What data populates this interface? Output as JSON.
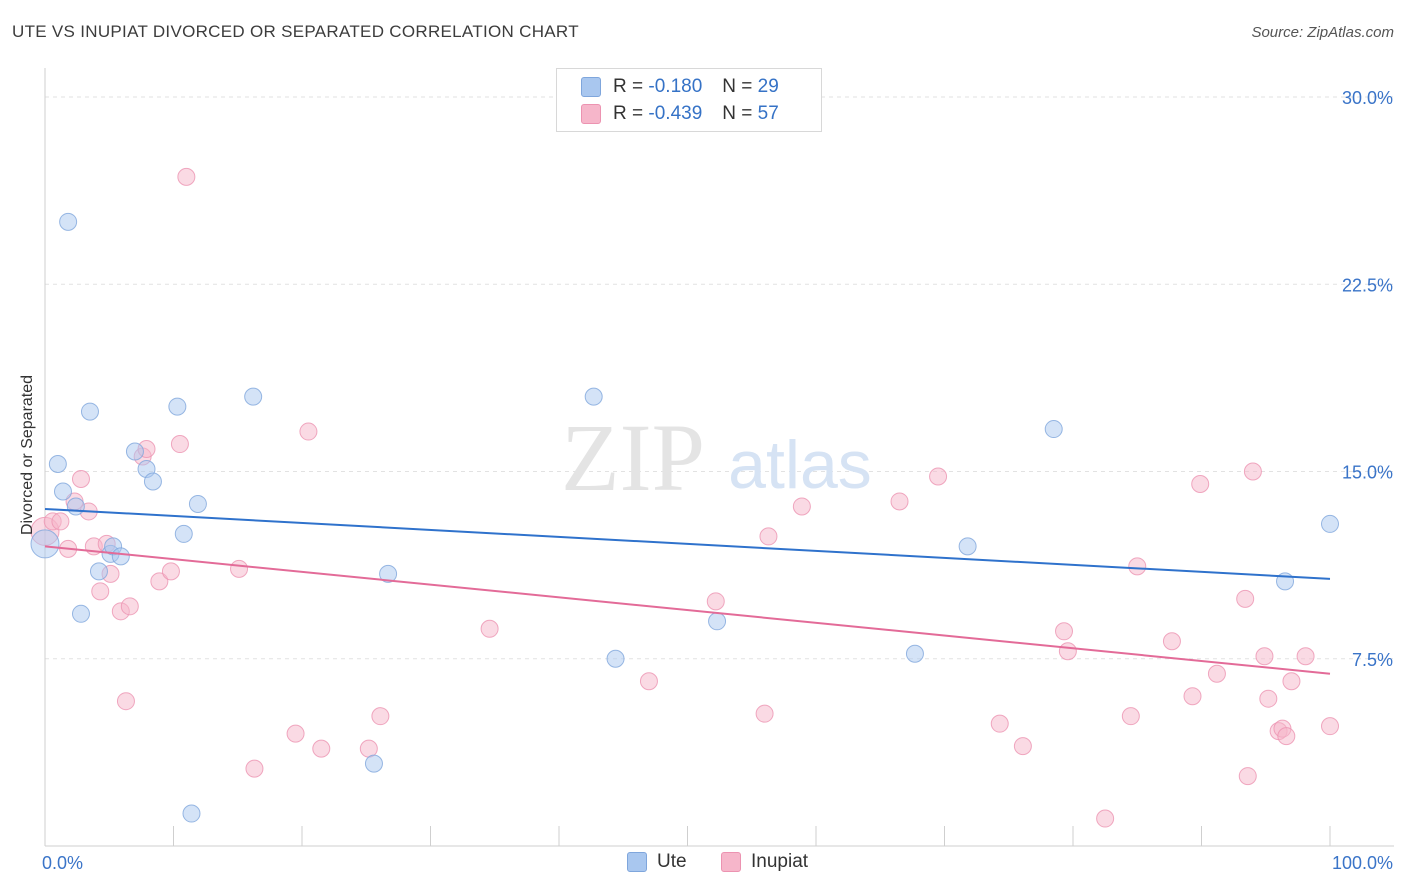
{
  "header": {
    "title": "UTE VS INUPIAT DIVORCED OR SEPARATED CORRELATION CHART",
    "source": "Source: ZipAtlas.com"
  },
  "watermark": {
    "zip": "ZIP",
    "atlas": "atlas"
  },
  "legend_top": {
    "rows": [
      {
        "r_label": "R =",
        "r_value": "-0.180",
        "n_label": "N =",
        "n_value": "29"
      },
      {
        "r_label": "R =",
        "r_value": "-0.439",
        "n_label": "N =",
        "n_value": "57"
      }
    ]
  },
  "legend_bottom": {
    "ute": "Ute",
    "inupiat": "Inupiat"
  },
  "colors": {
    "ute_fill": "#a9c7ef",
    "ute_stroke": "#7fa6dc",
    "ute_line": "#2f72cc",
    "inupiat_fill": "#f6b6ca",
    "inupiat_stroke": "#ec93b1",
    "inupiat_line": "#e36b98",
    "tick_text": "#3a74c8",
    "grid": "#e2e2e2"
  },
  "chart_data": {
    "type": "scatter",
    "title": "UTE VS INUPIAT DIVORCED OR SEPARATED CORRELATION CHART",
    "xlabel": "",
    "ylabel": "Divorced or Separated",
    "xlim": [
      0,
      100
    ],
    "ylim": [
      0,
      30
    ],
    "x_tick_labels": [
      "0.0%",
      "100.0%"
    ],
    "y_ticks": [
      7.5,
      15,
      22.5,
      30
    ],
    "y_tick_labels": [
      "7.5%",
      "15.0%",
      "22.5%",
      "30.0%"
    ],
    "grid": true,
    "series": [
      {
        "name": "Ute",
        "r": -0.18,
        "n": 29,
        "trend": {
          "x": [
            0,
            100
          ],
          "y": [
            13.5,
            10.7
          ]
        },
        "points": [
          [
            0,
            12.1
          ],
          [
            1.0,
            15.3
          ],
          [
            1.4,
            14.2
          ],
          [
            1.8,
            25.0
          ],
          [
            2.4,
            13.6
          ],
          [
            2.8,
            9.3
          ],
          [
            3.5,
            17.4
          ],
          [
            4.2,
            11.0
          ],
          [
            5.1,
            11.7
          ],
          [
            5.3,
            12.0
          ],
          [
            5.9,
            11.6
          ],
          [
            7.0,
            15.8
          ],
          [
            7.9,
            15.1
          ],
          [
            8.4,
            14.6
          ],
          [
            10.3,
            17.6
          ],
          [
            10.8,
            12.5
          ],
          [
            11.4,
            1.3
          ],
          [
            11.9,
            13.7
          ],
          [
            16.2,
            18.0
          ],
          [
            25.6,
            3.3
          ],
          [
            26.7,
            10.9
          ],
          [
            42.7,
            18.0
          ],
          [
            44.4,
            7.5
          ],
          [
            52.3,
            9.0
          ],
          [
            67.7,
            7.7
          ],
          [
            71.8,
            12.0
          ],
          [
            78.5,
            16.7
          ],
          [
            96.5,
            10.6
          ],
          [
            100,
            12.9
          ]
        ]
      },
      {
        "name": "Inupiat",
        "r": -0.439,
        "n": 57,
        "trend": {
          "x": [
            0,
            100
          ],
          "y": [
            12.0,
            6.9
          ]
        },
        "points": [
          [
            0,
            12.6
          ],
          [
            0.6,
            13.0
          ],
          [
            1.2,
            13.0
          ],
          [
            1.8,
            11.9
          ],
          [
            2.3,
            13.8
          ],
          [
            2.8,
            14.7
          ],
          [
            3.4,
            13.4
          ],
          [
            3.8,
            12.0
          ],
          [
            4.3,
            10.2
          ],
          [
            4.8,
            12.1
          ],
          [
            5.1,
            10.9
          ],
          [
            5.9,
            9.4
          ],
          [
            6.3,
            5.8
          ],
          [
            6.6,
            9.6
          ],
          [
            7.6,
            15.6
          ],
          [
            7.9,
            15.9
          ],
          [
            8.9,
            10.6
          ],
          [
            9.8,
            11.0
          ],
          [
            10.5,
            16.1
          ],
          [
            11.0,
            26.8
          ],
          [
            15.1,
            11.1
          ],
          [
            16.3,
            3.1
          ],
          [
            19.5,
            4.5
          ],
          [
            20.5,
            16.6
          ],
          [
            21.5,
            3.9
          ],
          [
            25.2,
            3.9
          ],
          [
            26.1,
            5.2
          ],
          [
            34.6,
            8.7
          ],
          [
            47.0,
            6.6
          ],
          [
            52.2,
            9.8
          ],
          [
            56.0,
            5.3
          ],
          [
            56.3,
            12.4
          ],
          [
            58.9,
            13.6
          ],
          [
            66.5,
            13.8
          ],
          [
            69.5,
            14.8
          ],
          [
            74.3,
            4.9
          ],
          [
            76.1,
            4.0
          ],
          [
            79.3,
            8.6
          ],
          [
            79.6,
            7.8
          ],
          [
            82.5,
            1.1
          ],
          [
            84.5,
            5.2
          ],
          [
            85.0,
            11.2
          ],
          [
            87.7,
            8.2
          ],
          [
            89.3,
            6.0
          ],
          [
            89.9,
            14.5
          ],
          [
            91.2,
            6.9
          ],
          [
            93.4,
            9.9
          ],
          [
            93.6,
            2.8
          ],
          [
            94.0,
            15.0
          ],
          [
            94.9,
            7.6
          ],
          [
            95.2,
            5.9
          ],
          [
            96.0,
            4.6
          ],
          [
            96.3,
            4.7
          ],
          [
            96.6,
            4.4
          ],
          [
            97.0,
            6.6
          ],
          [
            98.1,
            7.6
          ],
          [
            100,
            4.8
          ]
        ]
      }
    ]
  }
}
